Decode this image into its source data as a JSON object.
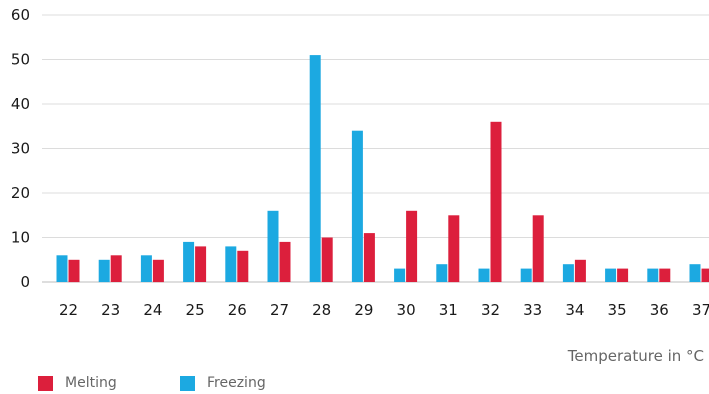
{
  "chart_data": {
    "type": "bar",
    "categories": [
      "22",
      "23",
      "24",
      "25",
      "26",
      "27",
      "28",
      "29",
      "30",
      "31",
      "32",
      "33",
      "34",
      "35",
      "36",
      "37"
    ],
    "series": [
      {
        "name": "Freezing",
        "color": "#1ca9e1",
        "values": [
          6,
          5,
          6,
          9,
          8,
          16,
          51,
          34,
          3,
          4,
          3,
          3,
          4,
          3,
          3,
          4
        ]
      },
      {
        "name": "Melting",
        "color": "#dc1f3c",
        "values": [
          5,
          6,
          5,
          8,
          7,
          9,
          10,
          11,
          16,
          15,
          36,
          15,
          5,
          3,
          3,
          3
        ]
      }
    ],
    "xlabel": "Temperature in °C",
    "ylabel": "",
    "ylim": [
      0,
      60
    ],
    "yticks": [
      "0",
      "10",
      "20",
      "30",
      "40",
      "50",
      "60"
    ],
    "grid": true,
    "legend_position": "bottom-left",
    "legend": [
      {
        "label": "Melting",
        "color": "#dc1f3c"
      },
      {
        "label": "Freezing",
        "color": "#1ca9e1"
      }
    ]
  }
}
